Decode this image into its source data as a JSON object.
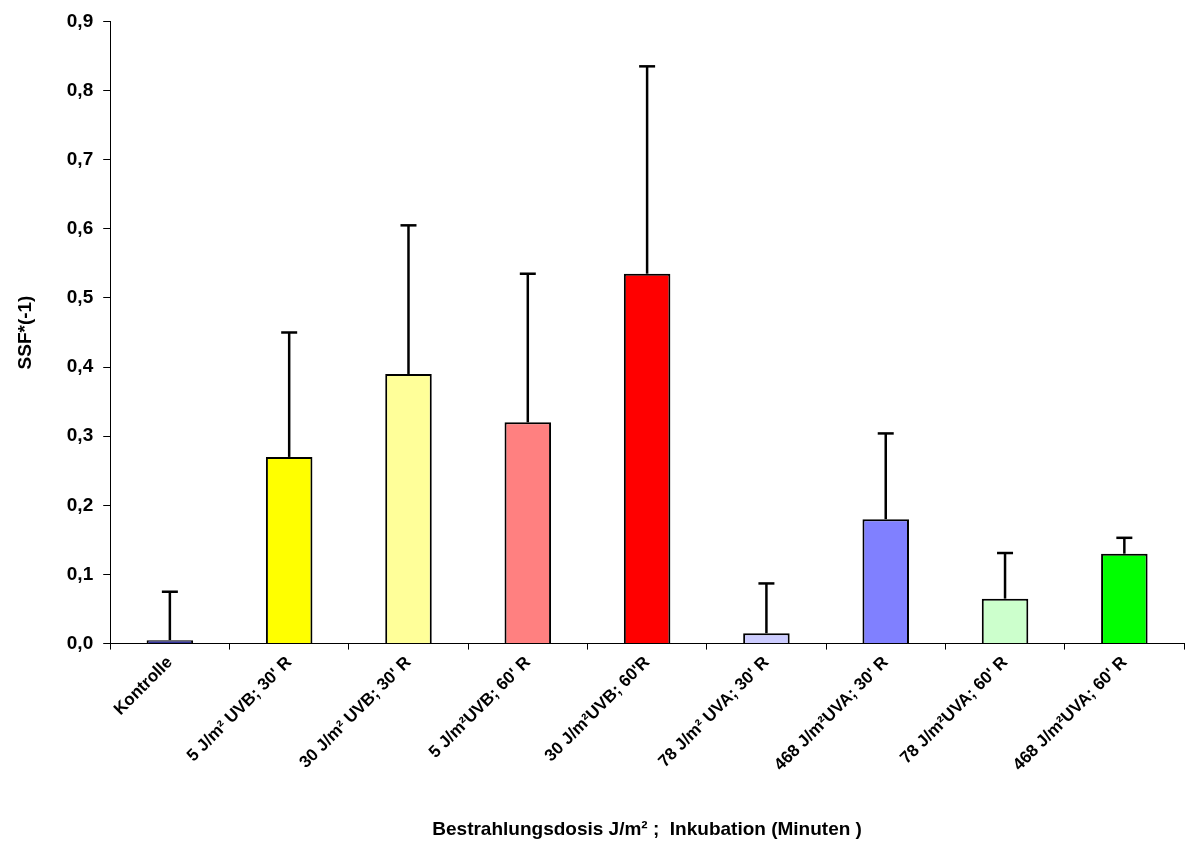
{
  "chart_data": {
    "type": "bar",
    "xlabel": "Bestrahlungsdosis J/m² ;  Inkubation (Minuten )",
    "ylabel": "SSF*(-1)",
    "categories": [
      "Kontrolle",
      "5 J/m² UVB; 30' R",
      "30 J/m² UVB; 30' R",
      "5 J/m²UVB; 60' R",
      "30 J/m²UVB; 60'R",
      "78 J/m² UVA; 30' R",
      "468 J/m²UVA; 30' R",
      "78 J/m²UVA; 60' R",
      "468 J/m²UVA; 60' R"
    ],
    "values": [
      0.005,
      0.27,
      0.39,
      0.32,
      0.535,
      0.015,
      0.18,
      0.065,
      0.13
    ],
    "colors": [
      "#333399",
      "#ffff00",
      "#ffff99",
      "#ff8080",
      "#ff0000",
      "#ccccff",
      "#8080ff",
      "#ccffcc",
      "#00ff00"
    ],
    "errors": [
      [
        0.005,
        0.075
      ],
      [
        0.27,
        0.45
      ],
      [
        0.39,
        0.605
      ],
      [
        0.32,
        0.535
      ],
      [
        0.535,
        0.835
      ],
      [
        0.015,
        0.087
      ],
      [
        0.18,
        0.304
      ],
      [
        0.065,
        0.131
      ],
      [
        0.13,
        0.153
      ]
    ],
    "ylim": [
      0,
      0.9
    ],
    "yticks": [
      {
        "value": 0,
        "label": "0,0"
      },
      {
        "value": 0.1,
        "label": "0,1"
      },
      {
        "value": 0.2,
        "label": "0,2"
      },
      {
        "value": 0.3,
        "label": "0,3"
      },
      {
        "value": 0.4,
        "label": "0,4"
      },
      {
        "value": 0.5,
        "label": "0,5"
      },
      {
        "value": 0.6,
        "label": "0,6"
      },
      {
        "value": 0.7,
        "label": "0,7"
      },
      {
        "value": 0.8,
        "label": "0,8"
      },
      {
        "value": 0.9,
        "label": "0,9"
      }
    ],
    "grid": false,
    "legend": false
  }
}
